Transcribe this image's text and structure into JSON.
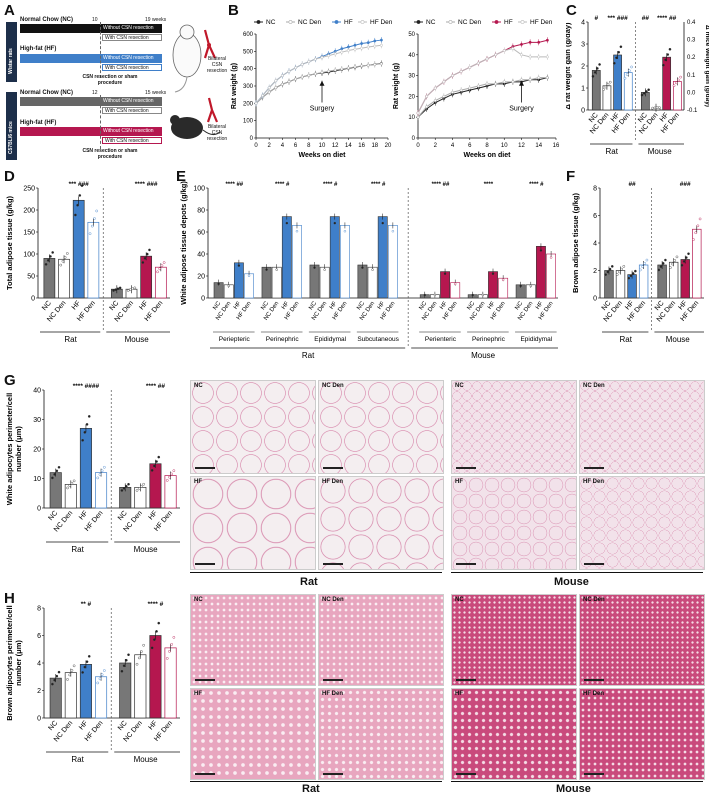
{
  "panels": {
    "A": "A",
    "B": "B",
    "C": "C",
    "D": "D",
    "E": "E",
    "F": "F",
    "G": "G",
    "H": "H"
  },
  "panelA": {
    "wistar": "Wistar rats",
    "c57": "C57BL/6 mice",
    "rat_nc_title": "Normal Chow (NC)",
    "rat_hf_title": "High-fat (HF)",
    "rat_weeks_end": "19 weeks",
    "rat_week_mark": "10",
    "mouse_weeks_end": "15 weeks",
    "mouse_week_mark": "12",
    "without": "Without CSN resection",
    "with": "With CSN resection",
    "surgery_rat": "CSN resection or sham procedure",
    "surgery_mouse": "CSN resection or sham procedure",
    "bilateral": "Bilateral CSN resection"
  },
  "colors": {
    "nc": "#555555",
    "hf_rat": "#3f7fc9",
    "hf_mouse": "#b5174f",
    "light": "#bfbfbf"
  },
  "legendB": [
    "NC",
    "NC Den",
    "HF",
    "HF Den"
  ],
  "chart_data": [
    {
      "id": "B-rat",
      "type": "line",
      "xlabel": "Weeks on diet",
      "ylabel": "Rat weight (g)",
      "xlim": [
        0,
        20
      ],
      "ylim": [
        0,
        600
      ],
      "xticks": [
        0,
        2,
        4,
        6,
        8,
        10,
        12,
        14,
        16,
        18,
        20
      ],
      "yticks": [
        0,
        100,
        200,
        300,
        400,
        500,
        600
      ],
      "annotation": "Surgery",
      "annotation_x": 10,
      "x": [
        0,
        1,
        2,
        3,
        4,
        5,
        6,
        7,
        8,
        9,
        10,
        11,
        12,
        13,
        14,
        15,
        16,
        17,
        18,
        19
      ],
      "series": [
        {
          "name": "NC",
          "values": [
            200,
            235,
            265,
            290,
            310,
            325,
            340,
            352,
            362,
            370,
            375,
            380,
            388,
            395,
            402,
            408,
            415,
            420,
            425,
            430
          ]
        },
        {
          "name": "NC Den",
          "values": [
            200,
            235,
            265,
            290,
            310,
            325,
            340,
            352,
            362,
            370,
            378,
            385,
            392,
            398,
            404,
            410,
            416,
            420,
            424,
            428
          ]
        },
        {
          "name": "HF",
          "values": [
            200,
            245,
            290,
            330,
            360,
            385,
            405,
            425,
            440,
            455,
            470,
            485,
            500,
            515,
            525,
            535,
            545,
            550,
            560,
            565
          ]
        },
        {
          "name": "HF Den",
          "values": [
            200,
            245,
            290,
            330,
            360,
            385,
            405,
            425,
            440,
            455,
            465,
            475,
            485,
            495,
            505,
            512,
            518,
            525,
            530,
            535
          ]
        }
      ]
    },
    {
      "id": "B-mouse",
      "type": "line",
      "xlabel": "Weeks on diet",
      "ylabel": "Rat weight (g)",
      "xlim": [
        0,
        16
      ],
      "ylim": [
        0,
        50
      ],
      "xticks": [
        0,
        2,
        4,
        6,
        8,
        10,
        12,
        14,
        16
      ],
      "yticks": [
        0,
        10,
        20,
        30,
        40,
        50
      ],
      "annotation": "Surgery",
      "annotation_x": 12,
      "x": [
        0,
        1,
        2,
        3,
        4,
        5,
        6,
        7,
        8,
        9,
        10,
        11,
        12,
        13,
        14,
        15
      ],
      "series": [
        {
          "name": "NC",
          "values": [
            10,
            14,
            17,
            19,
            21,
            22,
            23,
            24,
            25,
            26,
            26,
            27,
            27,
            28,
            28,
            29
          ]
        },
        {
          "name": "NC Den",
          "values": [
            10,
            15,
            18,
            20,
            22,
            23,
            24,
            25,
            26,
            26,
            27,
            27,
            28,
            28,
            29,
            29
          ]
        },
        {
          "name": "HF",
          "values": [
            12,
            20,
            24,
            27,
            30,
            32,
            34,
            36,
            38,
            40,
            42,
            44,
            45,
            46,
            46,
            47
          ]
        },
        {
          "name": "HF Den",
          "values": [
            12,
            20,
            24,
            27,
            30,
            32,
            34,
            36,
            38,
            40,
            42,
            43,
            40,
            39,
            39,
            39
          ]
        }
      ]
    },
    {
      "id": "C",
      "type": "bar",
      "ylabel": "Δ rat weight gain (g/day)",
      "ylabel2": "Δ mice weight gain (g/day)",
      "ylim": [
        0,
        4
      ],
      "yticks": [
        0,
        1,
        2,
        3,
        4
      ],
      "ylim2": [
        -0.1,
        0.4
      ],
      "yticks2": [
        -0.1,
        0.0,
        0.1,
        0.2,
        0.3,
        0.4
      ],
      "categories": [
        "NC",
        "NC Den",
        "HF",
        "HF Den",
        "NC",
        "NC Den",
        "HF",
        "HF Den"
      ],
      "groups": [
        "Rat",
        "Mouse"
      ],
      "values": [
        1.8,
        1.1,
        2.5,
        1.7,
        0.8,
        0.1,
        2.4,
        1.3
      ],
      "stars": [
        "#",
        "",
        "*** ###",
        "",
        "##",
        "",
        "**** ##",
        ""
      ]
    },
    {
      "id": "D",
      "type": "bar",
      "ylabel": "Total adipose tissue (g/kg)",
      "ylim": [
        0,
        250
      ],
      "yticks": [
        0,
        50,
        100,
        150,
        200,
        250
      ],
      "categories": [
        "NC",
        "NC Den",
        "HF",
        "HF Den",
        "NC",
        "NC Den",
        "HF",
        "HF Den"
      ],
      "groups": [
        "Rat",
        "Mouse"
      ],
      "values": [
        90,
        88,
        222,
        172,
        20,
        20,
        95,
        70
      ],
      "stars": [
        "",
        "",
        "*** ###",
        "",
        "",
        "",
        "**** ###",
        ""
      ]
    },
    {
      "id": "E",
      "type": "bar",
      "ylabel": "White adipose tissue depots (g/kg)",
      "ylim": [
        0,
        100
      ],
      "yticks": [
        0,
        20,
        40,
        60,
        80,
        100
      ],
      "depots": [
        "Periepteric",
        "Perinephric",
        "Epididymal",
        "Subcutaneous",
        "Perienteric",
        "Perinephric",
        "Epididymal"
      ],
      "groups": [
        "Rat",
        "Mouse"
      ],
      "series": [
        {
          "name": "NC",
          "values": [
            14,
            28,
            30,
            30,
            3,
            3,
            12
          ]
        },
        {
          "name": "NC Den",
          "values": [
            12,
            28,
            28,
            28,
            3,
            3,
            12
          ]
        },
        {
          "name": "HF",
          "values": [
            32,
            74,
            74,
            74,
            24,
            24,
            47
          ]
        },
        {
          "name": "HF Den",
          "values": [
            22,
            66,
            66,
            66,
            14,
            18,
            40
          ]
        }
      ],
      "stars": [
        "**** ##",
        "**** #",
        "**** #",
        "**** #",
        "**** ##",
        "****",
        "**** #"
      ]
    },
    {
      "id": "F",
      "type": "bar",
      "ylabel": "Brown adipose tissue (g/kg)",
      "ylim": [
        0,
        8
      ],
      "yticks": [
        0,
        2,
        4,
        6,
        8
      ],
      "categories": [
        "NC",
        "NC Den",
        "HF",
        "HF Den",
        "NC",
        "NC Den",
        "HF",
        "HF Den"
      ],
      "groups": [
        "Rat",
        "Mouse"
      ],
      "values": [
        2.0,
        2.0,
        1.7,
        2.4,
        2.4,
        2.6,
        2.8,
        5.0
      ],
      "stars": [
        "",
        "",
        "##",
        "",
        "",
        "",
        "###",
        ""
      ]
    },
    {
      "id": "G",
      "type": "bar",
      "ylabel": "White adipocytes perimeter/cell number (μm)",
      "ylim": [
        0,
        40
      ],
      "yticks": [
        0,
        10,
        20,
        30,
        40
      ],
      "categories": [
        "NC",
        "NC Den",
        "HF",
        "HF Den",
        "NC",
        "NC Den",
        "HF",
        "HF Den"
      ],
      "groups": [
        "Rat",
        "Mouse"
      ],
      "values": [
        12,
        8,
        27,
        12,
        7,
        7,
        15,
        11
      ],
      "stars": [
        "",
        "",
        "**** ####",
        "",
        "",
        "",
        "**** ##",
        ""
      ]
    },
    {
      "id": "H",
      "type": "bar",
      "ylabel": "Brown adipocytes perimeter/cell number (μm)",
      "ylim": [
        0,
        8
      ],
      "yticks": [
        0,
        2,
        4,
        6,
        8
      ],
      "categories": [
        "NC",
        "NC Den",
        "HF",
        "HF Den",
        "NC",
        "NC Den",
        "HF",
        "HF Den"
      ],
      "groups": [
        "Rat",
        "Mouse"
      ],
      "values": [
        2.9,
        3.3,
        3.9,
        3.0,
        4.0,
        4.6,
        6.0,
        5.1
      ],
      "stars": [
        "",
        "",
        "** #",
        "",
        "",
        "",
        "**** #",
        ""
      ]
    }
  ],
  "histology": {
    "white": [
      "NC",
      "NC Den",
      "NC",
      "NC Den",
      "HF",
      "HF Den",
      "HF",
      "HF Den"
    ],
    "brown": [
      "NC",
      "NC Den",
      "NC",
      "NC Den",
      "HF",
      "HF Den",
      "HF",
      "HF Den"
    ],
    "rat": "Rat",
    "mouse": "Mouse"
  }
}
